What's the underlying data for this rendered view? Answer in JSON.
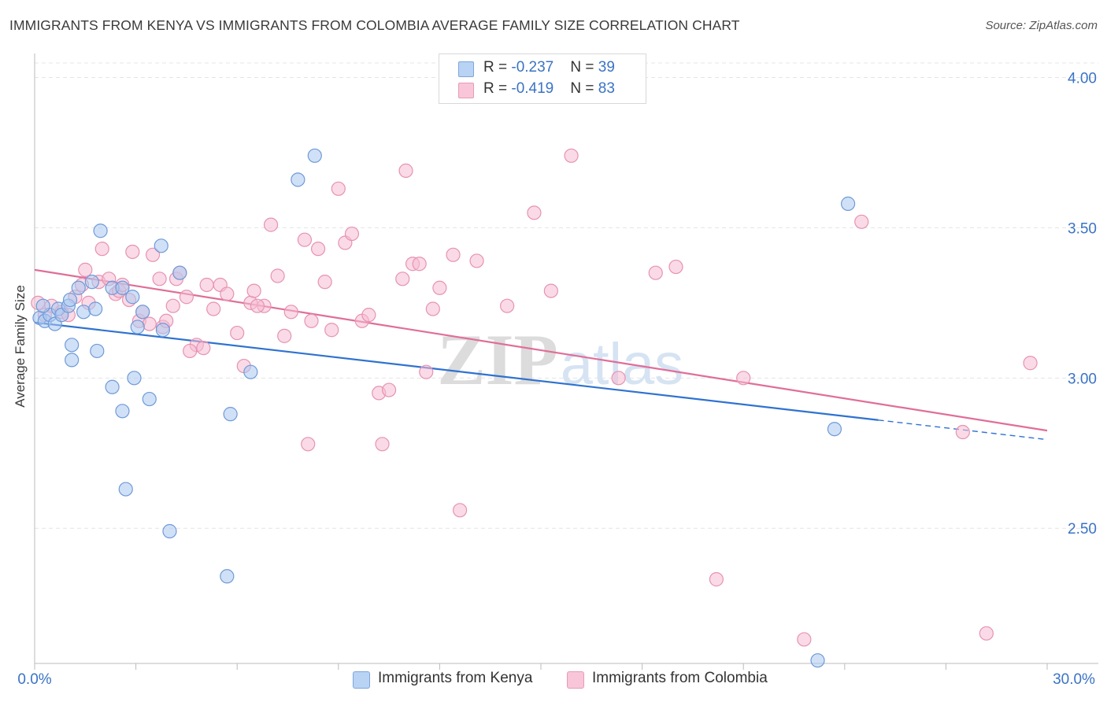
{
  "title": "IMMIGRANTS FROM KENYA VS IMMIGRANTS FROM COLOMBIA AVERAGE FAMILY SIZE CORRELATION CHART",
  "source": "Source: ZipAtlas.com",
  "watermark": {
    "zip": "ZIP",
    "atlas": "atlas"
  },
  "legend": {
    "kenya": {
      "r_label": "R = ",
      "r_value": "-0.237",
      "n_label": "N = ",
      "n_value": "39"
    },
    "colombia": {
      "r_label": "R = ",
      "r_value": "-0.419",
      "n_label": "N = ",
      "n_value": "83"
    }
  },
  "chart_data": {
    "type": "scatter",
    "xlabel": "",
    "ylabel": "Average Family Size",
    "xlim": [
      0,
      30
    ],
    "ylim": [
      2.05,
      4.08
    ],
    "x_tick_labels": [
      "0.0%",
      "30.0%"
    ],
    "y_ticks": [
      2.5,
      3.0,
      3.5,
      4.0
    ],
    "y_tick_labels": [
      "2.50",
      "3.00",
      "3.50",
      "4.00"
    ],
    "grid": true,
    "legend_position": "top-center",
    "colors": {
      "kenya_fill": "#a9c8f0",
      "kenya_stroke": "#6f9ad8",
      "kenya_line": "#2f72d0",
      "colombia_fill": "#f6bcd1",
      "colombia_stroke": "#e693b2",
      "colombia_line": "#e06e98",
      "tick_label": "#3a73c4",
      "grid": "#e4e4e4"
    },
    "series": [
      {
        "name": "Immigrants from Kenya",
        "trend": {
          "x": [
            0,
            25.0
          ],
          "y": [
            3.185,
            2.86
          ],
          "dashed_to": [
            30,
            2.795
          ]
        },
        "points": [
          [
            0.15,
            3.2
          ],
          [
            0.3,
            3.19
          ],
          [
            0.45,
            3.21
          ],
          [
            0.6,
            3.18
          ],
          [
            0.7,
            3.23
          ],
          [
            0.8,
            3.21
          ],
          [
            1.0,
            3.24
          ],
          [
            1.1,
            3.11
          ],
          [
            1.05,
            3.26
          ],
          [
            1.3,
            3.3
          ],
          [
            1.45,
            3.22
          ],
          [
            1.8,
            3.23
          ],
          [
            1.7,
            3.32
          ],
          [
            2.3,
            3.3
          ],
          [
            2.6,
            3.3
          ],
          [
            2.9,
            3.27
          ],
          [
            3.2,
            3.22
          ],
          [
            4.3,
            3.35
          ],
          [
            3.75,
            3.44
          ],
          [
            1.95,
            3.49
          ],
          [
            1.1,
            3.06
          ],
          [
            1.85,
            3.09
          ],
          [
            2.3,
            2.97
          ],
          [
            2.6,
            2.89
          ],
          [
            2.95,
            3.0
          ],
          [
            3.05,
            3.17
          ],
          [
            3.4,
            2.93
          ],
          [
            3.8,
            3.16
          ],
          [
            2.7,
            2.63
          ],
          [
            4.0,
            2.49
          ],
          [
            5.8,
            2.88
          ],
          [
            6.4,
            3.02
          ],
          [
            5.7,
            2.34
          ],
          [
            7.8,
            3.66
          ],
          [
            8.3,
            3.74
          ],
          [
            24.1,
            3.58
          ],
          [
            23.7,
            2.83
          ],
          [
            23.2,
            2.06
          ],
          [
            0.25,
            3.24
          ]
        ]
      },
      {
        "name": "Immigrants from Colombia",
        "trend": {
          "x": [
            0,
            30
          ],
          "y": [
            3.36,
            2.825
          ]
        },
        "points": [
          [
            0.1,
            3.25
          ],
          [
            0.3,
            3.21
          ],
          [
            0.5,
            3.24
          ],
          [
            0.8,
            3.22
          ],
          [
            1.0,
            3.21
          ],
          [
            1.2,
            3.27
          ],
          [
            1.4,
            3.31
          ],
          [
            1.5,
            3.36
          ],
          [
            1.6,
            3.25
          ],
          [
            1.9,
            3.32
          ],
          [
            2.0,
            3.43
          ],
          [
            2.2,
            3.33
          ],
          [
            2.4,
            3.28
          ],
          [
            2.5,
            3.29
          ],
          [
            2.6,
            3.31
          ],
          [
            2.8,
            3.26
          ],
          [
            2.9,
            3.42
          ],
          [
            3.1,
            3.19
          ],
          [
            3.2,
            3.22
          ],
          [
            3.5,
            3.41
          ],
          [
            3.7,
            3.33
          ],
          [
            3.8,
            3.17
          ],
          [
            3.9,
            3.19
          ],
          [
            4.1,
            3.24
          ],
          [
            4.2,
            3.33
          ],
          [
            4.3,
            3.35
          ],
          [
            4.5,
            3.27
          ],
          [
            4.8,
            3.11
          ],
          [
            5.0,
            3.1
          ],
          [
            5.3,
            3.23
          ],
          [
            5.5,
            3.31
          ],
          [
            5.7,
            3.28
          ],
          [
            6.0,
            3.15
          ],
          [
            6.2,
            3.04
          ],
          [
            6.4,
            3.25
          ],
          [
            6.5,
            3.29
          ],
          [
            6.8,
            3.24
          ],
          [
            7.0,
            3.51
          ],
          [
            7.2,
            3.34
          ],
          [
            7.4,
            3.14
          ],
          [
            7.6,
            3.22
          ],
          [
            8.0,
            3.46
          ],
          [
            8.2,
            3.19
          ],
          [
            8.4,
            3.43
          ],
          [
            8.6,
            3.32
          ],
          [
            8.8,
            3.16
          ],
          [
            9.0,
            3.63
          ],
          [
            9.2,
            3.45
          ],
          [
            9.4,
            3.48
          ],
          [
            9.7,
            3.19
          ],
          [
            9.9,
            3.21
          ],
          [
            10.2,
            2.95
          ],
          [
            10.5,
            2.96
          ],
          [
            10.9,
            3.33
          ],
          [
            11.2,
            3.38
          ],
          [
            11.4,
            3.38
          ],
          [
            11.6,
            3.02
          ],
          [
            11.8,
            3.23
          ],
          [
            12.0,
            3.3
          ],
          [
            12.4,
            3.41
          ],
          [
            12.6,
            2.56
          ],
          [
            13.1,
            3.39
          ],
          [
            14.0,
            3.24
          ],
          [
            14.8,
            3.55
          ],
          [
            15.3,
            3.29
          ],
          [
            15.9,
            3.74
          ],
          [
            17.3,
            3.0
          ],
          [
            18.4,
            3.35
          ],
          [
            19.0,
            3.37
          ],
          [
            20.2,
            2.33
          ],
          [
            21.0,
            3.0
          ],
          [
            22.8,
            2.13
          ],
          [
            24.5,
            3.52
          ],
          [
            27.5,
            2.82
          ],
          [
            28.2,
            2.15
          ],
          [
            29.5,
            3.05
          ],
          [
            3.4,
            3.18
          ],
          [
            4.6,
            3.09
          ],
          [
            5.1,
            3.31
          ],
          [
            8.1,
            2.78
          ],
          [
            10.3,
            2.78
          ],
          [
            11.0,
            3.69
          ],
          [
            6.6,
            3.24
          ]
        ]
      }
    ]
  },
  "bottom_legend": {
    "kenya_label": "Immigrants from Kenya",
    "colombia_label": "Immigrants from Colombia"
  }
}
